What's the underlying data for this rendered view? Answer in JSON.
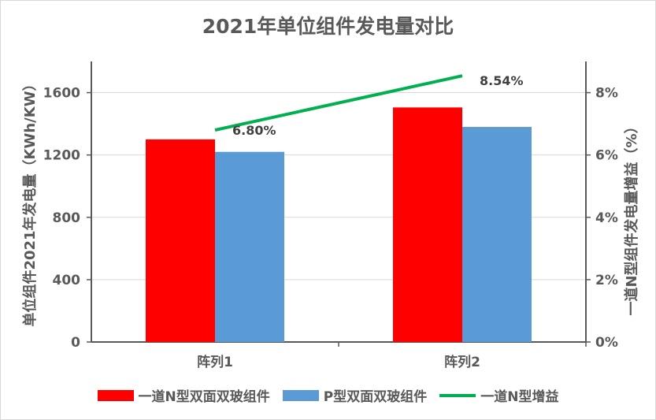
{
  "colors": {
    "series_red": "#ff0000",
    "series_blue": "#5b9bd5",
    "series_green": "#00b050",
    "axis": "#595959",
    "grid": "#d9d9d9"
  },
  "chart_data": {
    "type": "bar",
    "title": "2021年单位组件发电量对比",
    "categories": [
      "阵列1",
      "阵列2"
    ],
    "ylabel": "单位组件2021年发电量（KWh/KW）",
    "ylim": [
      0,
      1800
    ],
    "yticks": [
      0,
      400,
      800,
      1200,
      1600
    ],
    "y2label": "一道N型组件发电量增益（%）",
    "y2lim": [
      0,
      9
    ],
    "y2ticks": [
      "0%",
      "2%",
      "4%",
      "6%",
      "8%"
    ],
    "y2tick_values": [
      0,
      2,
      4,
      6,
      8
    ],
    "grid": true,
    "legend_position": "bottom",
    "series": [
      {
        "name": "一道N型双面双玻组件",
        "type": "bar",
        "axis": "left",
        "values": [
          1300,
          1505
        ]
      },
      {
        "name": "P型双面双玻组件",
        "type": "bar",
        "axis": "left",
        "values": [
          1220,
          1380
        ]
      },
      {
        "name": "一道N型增益",
        "type": "line",
        "axis": "right",
        "values": [
          6.8,
          8.54
        ],
        "labels": [
          "6.80%",
          "8.54%"
        ]
      }
    ]
  }
}
